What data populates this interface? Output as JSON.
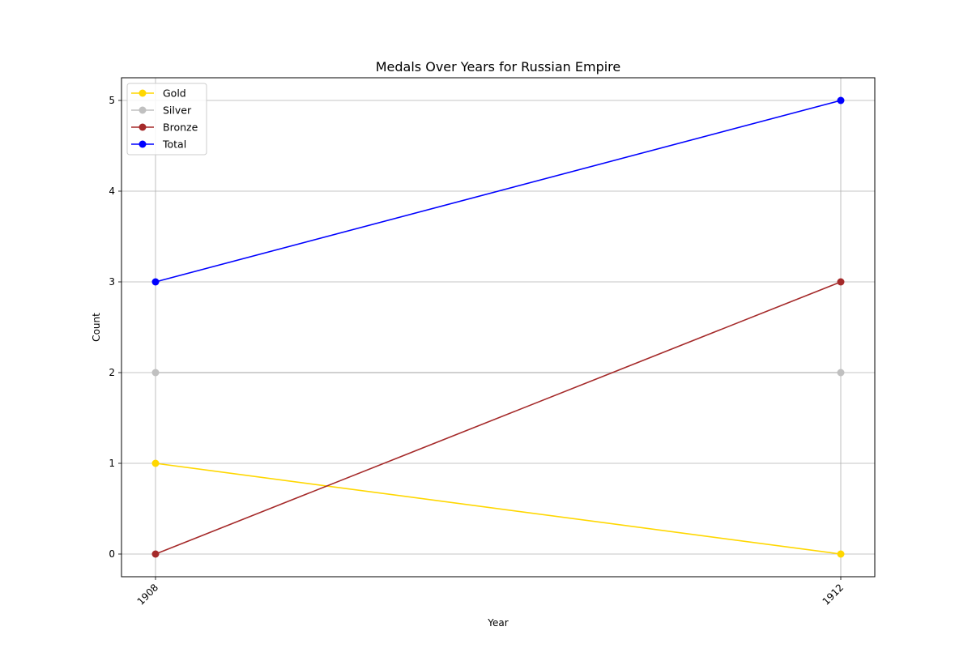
{
  "chart_data": {
    "type": "line",
    "title": "Medals Over Years for Russian Empire",
    "xlabel": "Year",
    "ylabel": "Count",
    "x": [
      "1908",
      "1912"
    ],
    "ylim": [
      -0.25,
      5.25
    ],
    "yticks": [
      0,
      1,
      2,
      3,
      4,
      5
    ],
    "grid": true,
    "legend_position": "top-left",
    "x_tick_rotation": 45,
    "series": [
      {
        "name": "Gold",
        "color": "#FFD700",
        "marker": "circle",
        "values": [
          1,
          0
        ]
      },
      {
        "name": "Silver",
        "color": "#C0C0C0",
        "marker": "circle",
        "values": [
          2,
          2
        ]
      },
      {
        "name": "Bronze",
        "color": "#A52A2A",
        "marker": "circle",
        "values": [
          0,
          3
        ]
      },
      {
        "name": "Total",
        "color": "#0000FF",
        "marker": "circle",
        "values": [
          3,
          5
        ]
      }
    ]
  }
}
